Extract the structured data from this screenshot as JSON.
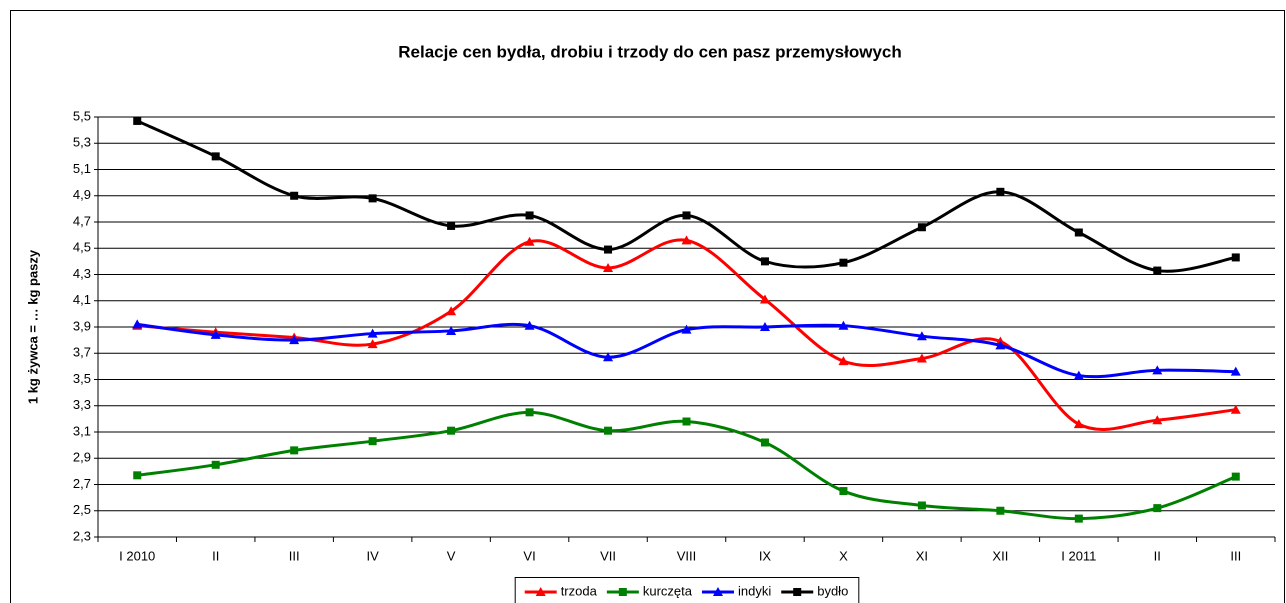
{
  "chart_data": {
    "type": "line",
    "title": "Relacje cen bydła, drobiu i trzody do cen pasz przemysłowych",
    "y_label": "1 kg żywca = … kg paszy",
    "categories": [
      "I 2010",
      "II",
      "III",
      "IV",
      "V",
      "VI",
      "VII",
      "VIII",
      "IX",
      "X",
      "XI",
      "XII",
      "I 2011",
      "II",
      "III"
    ],
    "series": [
      {
        "name": "trzoda",
        "color": "#ff0000",
        "marker": "triangle",
        "values": [
          3.91,
          3.86,
          3.82,
          3.77,
          4.02,
          4.55,
          4.35,
          4.56,
          4.11,
          3.64,
          3.66,
          3.79,
          3.16,
          3.19,
          3.27
        ]
      },
      {
        "name": "kurczęta",
        "color": "#008000",
        "marker": "square",
        "values": [
          2.77,
          2.85,
          2.96,
          3.03,
          3.11,
          3.25,
          3.11,
          3.18,
          3.02,
          2.65,
          2.54,
          2.5,
          2.44,
          2.52,
          2.76
        ]
      },
      {
        "name": "indyki",
        "color": "#0000ff",
        "marker": "triangle",
        "values": [
          3.92,
          3.84,
          3.8,
          3.85,
          3.87,
          3.91,
          3.67,
          3.88,
          3.9,
          3.91,
          3.83,
          3.76,
          3.53,
          3.57,
          3.56
        ]
      },
      {
        "name": "bydło",
        "color": "#000000",
        "marker": "square",
        "values": [
          5.47,
          5.2,
          4.9,
          4.88,
          4.67,
          4.75,
          4.49,
          4.75,
          4.4,
          4.39,
          4.66,
          4.93,
          4.62,
          4.33,
          4.43
        ]
      }
    ],
    "ylim": [
      2.3,
      5.5
    ],
    "yticks": [
      {
        "value": 2.3,
        "label": "2,3"
      },
      {
        "value": 2.5,
        "label": "2,5"
      },
      {
        "value": 2.7,
        "label": "2,7"
      },
      {
        "value": 2.9,
        "label": "2,9"
      },
      {
        "value": 3.1,
        "label": "3,1"
      },
      {
        "value": 3.3,
        "label": "3,3"
      },
      {
        "value": 3.5,
        "label": "3,5"
      },
      {
        "value": 3.7,
        "label": "3,7"
      },
      {
        "value": 3.9,
        "label": "3,9"
      },
      {
        "value": 4.1,
        "label": "4,1"
      },
      {
        "value": 4.3,
        "label": "4,3"
      },
      {
        "value": 4.5,
        "label": "4,5"
      },
      {
        "value": 4.7,
        "label": "4,7"
      },
      {
        "value": 4.9,
        "label": "4,9"
      },
      {
        "value": 5.1,
        "label": "5,1"
      },
      {
        "value": 5.3,
        "label": "5,3"
      },
      {
        "value": 5.5,
        "label": "5,5"
      }
    ],
    "grid": true,
    "smooth": true,
    "legend": "bottom"
  }
}
